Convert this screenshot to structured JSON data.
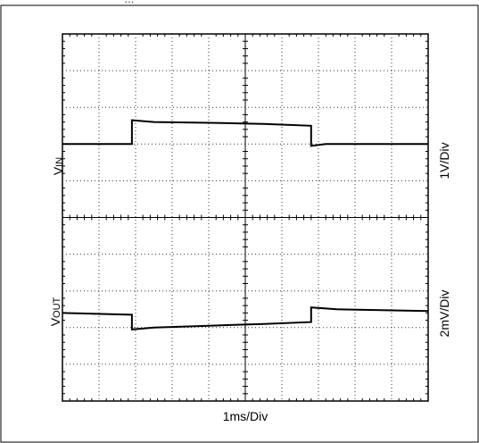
{
  "header_fragment": "...",
  "chart_data": {
    "type": "line",
    "title": "",
    "xlabel": "1ms/Div",
    "x_unit": "ms",
    "xlim": [
      0,
      10
    ],
    "grid": true,
    "grid_divisions": {
      "x": 10,
      "y": 10
    },
    "series": [
      {
        "name_main": "V",
        "name_sub": "IN",
        "scale_label": "1V/Div",
        "ylim_div": [
          -5,
          5
        ],
        "x": [
          0,
          1.9,
          1.9,
          2.5,
          4.0,
          5.5,
          6.8,
          6.8,
          7.2,
          10
        ],
        "y": [
          2.0,
          2.0,
          2.65,
          2.6,
          2.58,
          2.55,
          2.5,
          1.95,
          2.0,
          2.0
        ]
      },
      {
        "name_main": "V",
        "name_sub": "OUT",
        "scale_label": "2mV/Div",
        "ylim_div": [
          -5,
          5
        ],
        "x": [
          0,
          1.9,
          1.9,
          2.5,
          4.0,
          5.5,
          6.8,
          6.8,
          7.5,
          10
        ],
        "y": [
          -2.6,
          -2.65,
          -3.05,
          -3.0,
          -2.95,
          -2.9,
          -2.85,
          -2.45,
          -2.5,
          -2.55
        ]
      }
    ]
  }
}
